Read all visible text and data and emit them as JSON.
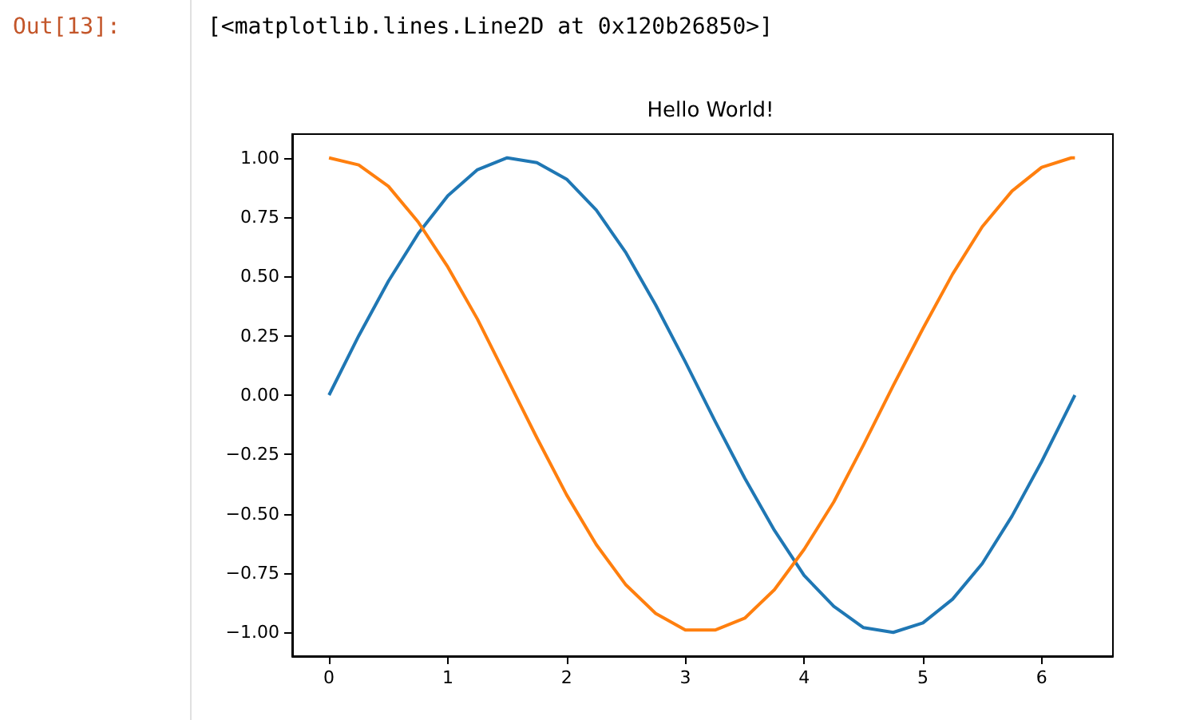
{
  "chart_data": {
    "type": "line",
    "title": "Hello World!",
    "annotations": [
      "Out[13]:",
      "[<matplotlib.lines.Line2D at 0x120b26850>]"
    ],
    "x": [
      0,
      0.25,
      0.5,
      0.75,
      1,
      1.25,
      1.5,
      1.75,
      2,
      2.25,
      2.5,
      2.75,
      3,
      3.25,
      3.5,
      3.75,
      4,
      4.25,
      4.5,
      4.75,
      5,
      5.25,
      5.5,
      5.75,
      6,
      6.25,
      6.28
    ],
    "series": [
      {
        "color": "#1f77b4",
        "values": [
          0,
          0.25,
          0.48,
          0.68,
          0.84,
          0.95,
          1.0,
          0.98,
          0.91,
          0.78,
          0.6,
          0.38,
          0.14,
          -0.11,
          -0.35,
          -0.57,
          -0.76,
          -0.89,
          -0.98,
          -1.0,
          -0.96,
          -0.86,
          -0.71,
          -0.51,
          -0.28,
          -0.03,
          0
        ]
      },
      {
        "color": "#ff7f0e",
        "values": [
          1,
          0.97,
          0.88,
          0.73,
          0.54,
          0.32,
          0.07,
          -0.18,
          -0.42,
          -0.63,
          -0.8,
          -0.92,
          -0.99,
          -0.99,
          -0.94,
          -0.82,
          -0.65,
          -0.45,
          -0.21,
          0.04,
          0.28,
          0.51,
          0.71,
          0.86,
          0.96,
          1.0,
          1
        ]
      }
    ],
    "xlim": [
      -0.31,
      6.6
    ],
    "ylim": [
      -1.1,
      1.1
    ],
    "xticks": [
      0,
      1,
      2,
      3,
      4,
      5,
      6
    ],
    "yticks": [
      {
        "value": 1,
        "label": "1.00"
      },
      {
        "value": 0.75,
        "label": "0.75"
      },
      {
        "value": 0.5,
        "label": "0.50"
      },
      {
        "value": 0.25,
        "label": "0.25"
      },
      {
        "value": 0,
        "label": "0.00"
      },
      {
        "value": -0.25,
        "label": "−0.25"
      },
      {
        "value": -0.5,
        "label": "−0.50"
      },
      {
        "value": -0.75,
        "label": "−0.75"
      },
      {
        "value": -1,
        "label": "−1.00"
      }
    ],
    "grid": false,
    "marker": "none",
    "line_style": "solid"
  }
}
